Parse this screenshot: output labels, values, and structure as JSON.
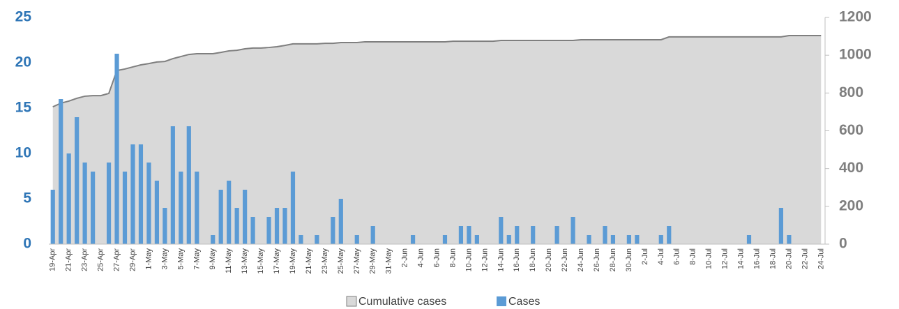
{
  "chart_data": {
    "type": "bar",
    "categories": [
      "19-Apr",
      null,
      "21-Apr",
      null,
      "23-Apr",
      null,
      "25-Apr",
      null,
      "27-Apr",
      null,
      "29-Apr",
      null,
      "1-May",
      null,
      "3-May",
      null,
      "5-May",
      null,
      "7-May",
      null,
      "9-May",
      null,
      "11-May",
      null,
      "13-May",
      null,
      "15-May",
      null,
      "17-May",
      null,
      "19-May",
      null,
      "21-May",
      null,
      "23-May",
      null,
      "25-May",
      null,
      "27-May",
      null,
      "29-May",
      null,
      "31-May",
      null,
      "2-Jun",
      null,
      "4-Jun",
      null,
      "6-Jun",
      null,
      "8-Jun",
      null,
      "10-Jun",
      null,
      "12-Jun",
      null,
      "14-Jun",
      null,
      "16-Jun",
      null,
      "18-Jun",
      null,
      "20-Jun",
      null,
      "22-Jun",
      null,
      "24-Jun",
      null,
      "26-Jun",
      null,
      "28-Jun",
      null,
      "30-Jun",
      null,
      "2-Jul",
      null,
      "4-Jul",
      null,
      "6-Jul",
      null,
      "8-Jul",
      null,
      "10-Jul",
      null,
      "12-Jul",
      null,
      "14-Jul",
      null,
      "16-Jul",
      null,
      "18-Jul",
      null,
      "20-Jul",
      null,
      "22-Jul",
      null,
      "24-Jul"
    ],
    "series": [
      {
        "name": "Cumulative cases",
        "type": "area",
        "axis": "y2",
        "color": "#d9d9d9",
        "line_color": "#7f7f7f",
        "values": [
          727,
          746,
          757,
          772,
          783,
          786,
          786,
          798,
          919,
          927,
          938,
          949,
          956,
          964,
          967,
          982,
          993,
          1004,
          1008,
          1008,
          1008,
          1015,
          1023,
          1026,
          1034,
          1038,
          1038,
          1041,
          1045,
          1052,
          1060,
          1060,
          1060,
          1060,
          1063,
          1063,
          1067,
          1067,
          1067,
          1071,
          1071,
          1071,
          1071,
          1071,
          1071,
          1071,
          1071,
          1071,
          1071,
          1071,
          1074,
          1074,
          1074,
          1074,
          1074,
          1074,
          1078,
          1078,
          1078,
          1078,
          1078,
          1078,
          1078,
          1078,
          1078,
          1078,
          1082,
          1082,
          1082,
          1082,
          1082,
          1082,
          1082,
          1082,
          1082,
          1082,
          1082,
          1097,
          1097,
          1097,
          1097,
          1097,
          1097,
          1097,
          1097,
          1097,
          1097,
          1097,
          1097,
          1097,
          1097,
          1097,
          1104,
          1104,
          1104,
          1104,
          1104
        ]
      },
      {
        "name": "Cases",
        "type": "bar",
        "color": "#5b9bd5",
        "values": [
          6,
          16,
          10,
          14,
          9,
          8,
          0,
          9,
          21,
          8,
          11,
          11,
          9,
          7,
          4,
          13,
          8,
          13,
          8,
          0,
          1,
          6,
          7,
          4,
          6,
          3,
          0,
          3,
          4,
          4,
          8,
          1,
          0,
          1,
          0,
          3,
          5,
          0,
          1,
          0,
          2,
          0,
          0,
          0,
          0,
          1,
          0,
          0,
          0,
          1,
          0,
          2,
          2,
          1,
          0,
          0,
          3,
          1,
          2,
          0,
          2,
          0,
          0,
          2,
          0,
          3,
          0,
          1,
          0,
          2,
          1,
          0,
          1,
          1,
          0,
          0,
          1,
          2,
          0,
          0,
          0,
          0,
          0,
          0,
          0,
          0,
          0,
          1,
          0,
          0,
          0,
          4,
          1,
          0,
          0,
          0,
          0
        ]
      }
    ],
    "ylim": [
      0,
      25
    ],
    "yticks": [
      0,
      5,
      10,
      15,
      20,
      25
    ],
    "y2lim": [
      0,
      1200
    ],
    "y2ticks": [
      0,
      200,
      400,
      600,
      800,
      1000,
      1200
    ],
    "grid": false,
    "legend": "bottom"
  }
}
